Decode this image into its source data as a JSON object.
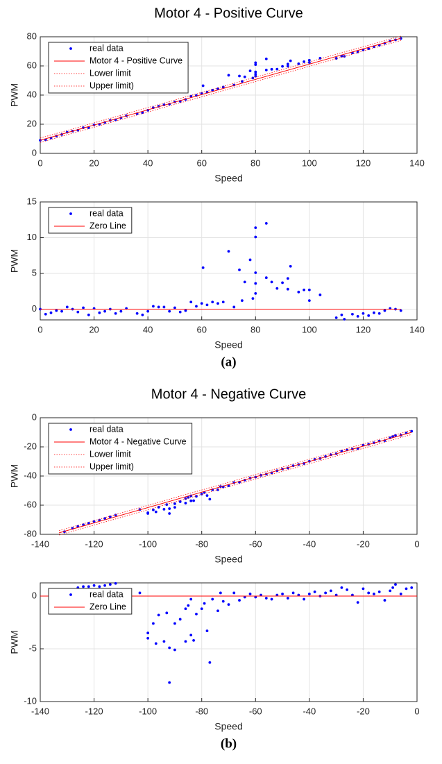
{
  "chart_data": [
    {
      "type": "scatter",
      "title": "Motor 4 - Positive Curve",
      "xlabel": "Speed",
      "ylabel": "PWM",
      "xlim": [
        0,
        140
      ],
      "ylim": [
        0,
        80
      ],
      "xticks": [
        0,
        20,
        40,
        60,
        80,
        100,
        120,
        140
      ],
      "yticks": [
        0,
        20,
        40,
        60,
        80
      ],
      "grid": true,
      "legend": "upper left",
      "series": [
        {
          "name": "real data",
          "color": "#0000ff",
          "style": "markers",
          "x": [
            0,
            2,
            4,
            6,
            8,
            10,
            12,
            14,
            16,
            18,
            20,
            22,
            24,
            26,
            28,
            30,
            32,
            36,
            38,
            40,
            42,
            44,
            46,
            48,
            50,
            52,
            54,
            56,
            58,
            60,
            60.5,
            62,
            64,
            66,
            68,
            70,
            72,
            74,
            75,
            76,
            78,
            79,
            80,
            80,
            80,
            80,
            80,
            84,
            84,
            86,
            88,
            90,
            92,
            93,
            92,
            96,
            98,
            100,
            100,
            104,
            110,
            112,
            113,
            116,
            118,
            120,
            122,
            124,
            126,
            128,
            130,
            132,
            134
          ],
          "values": [
            9,
            9.3,
            10.6,
            11.9,
            12.9,
            14.5,
            15.3,
            15.9,
            17.6,
            17.6,
            19.5,
            20,
            21.2,
            22.6,
            23,
            24.4,
            25.8,
            27.2,
            28,
            29.6,
            31.3,
            32.3,
            33.3,
            33.8,
            35.3,
            35.7,
            37,
            39.2,
            39.7,
            41.1,
            46.4,
            42,
            43.4,
            44.3,
            45.5,
            53.6,
            46.9,
            53.1,
            49.4,
            52.5,
            56.6,
            51.7,
            62.2,
            60.9,
            55.9,
            54.4,
            53,
            64.8,
            57.2,
            57.7,
            57.8,
            59.7,
            61.3,
            63.5,
            59.8,
            61.5,
            62.9,
            63.9,
            62.4,
            65.3,
            65.2,
            66.7,
            66.6,
            68.9,
            69.6,
            71,
            71.8,
            73.2,
            74.2,
            75.6,
            77,
            77.9,
            78.8
          ]
        },
        {
          "name": "Motor 4 - Positive Curve",
          "color": "#ff0000",
          "style": "solid",
          "x": [
            0,
            134
          ],
          "values": [
            9,
            79
          ]
        },
        {
          "name": "Lower limit",
          "color": "#ff0000",
          "style": "dotted",
          "x": [
            0,
            134
          ],
          "values": [
            7.5,
            77.5
          ]
        },
        {
          "name": "Upper limit)",
          "color": "#ff0000",
          "style": "dotted",
          "x": [
            0,
            134
          ],
          "values": [
            10.5,
            80.5
          ]
        }
      ]
    },
    {
      "type": "scatter",
      "xlabel": "Speed",
      "ylabel": "PWM",
      "caption": "(a)",
      "xlim": [
        0,
        140
      ],
      "ylim": [
        -1.5,
        15
      ],
      "xticks": [
        0,
        20,
        40,
        60,
        80,
        100,
        120,
        140
      ],
      "yticks": [
        0,
        5,
        10,
        15
      ],
      "grid": true,
      "legend": "upper left",
      "series": [
        {
          "name": "real data",
          "color": "#0000ff",
          "style": "markers",
          "x": [
            0,
            2,
            4,
            6,
            8,
            10,
            12,
            14,
            16,
            18,
            20,
            22,
            24,
            26,
            28,
            30,
            32,
            36,
            38,
            40,
            42,
            44,
            46,
            48,
            50,
            52,
            54,
            56,
            58,
            60,
            60.5,
            62,
            64,
            66,
            68,
            70,
            72,
            74,
            75,
            76,
            78,
            79,
            80,
            80,
            80,
            80,
            80,
            84,
            84,
            86,
            88,
            90,
            92,
            93,
            92,
            96,
            98,
            100,
            100,
            104,
            110,
            112,
            113,
            116,
            118,
            120,
            122,
            124,
            126,
            128,
            130,
            132,
            134
          ],
          "values": [
            0,
            -0.7,
            -0.5,
            -0.2,
            -0.3,
            0.3,
            0,
            -0.4,
            0.2,
            -0.8,
            0.1,
            -0.5,
            -0.3,
            0,
            -0.6,
            -0.3,
            0.1,
            -0.6,
            -0.8,
            -0.3,
            0.4,
            0.3,
            0.3,
            -0.3,
            0.2,
            -0.4,
            -0.2,
            1,
            0.4,
            0.8,
            5.8,
            0.6,
            1,
            0.8,
            1,
            8.1,
            0.3,
            5.5,
            1.2,
            3.8,
            6.9,
            1.5,
            11.4,
            10.1,
            5.1,
            3.6,
            2.2,
            12,
            4.4,
            3.8,
            2.9,
            3.7,
            4.3,
            6,
            2.8,
            2.4,
            2.7,
            2.7,
            1.2,
            2,
            -1.2,
            -0.8,
            -1.4,
            -0.7,
            -1,
            -0.6,
            -0.9,
            -0.5,
            -0.6,
            -0.2,
            0.1,
            0,
            -0.2
          ]
        },
        {
          "name": "Zero Line",
          "color": "#ff0000",
          "style": "solid",
          "x": [
            0,
            134
          ],
          "values": [
            0,
            0
          ]
        }
      ]
    },
    {
      "type": "scatter",
      "title": "Motor 4 - Negative Curve",
      "xlabel": "Speed",
      "ylabel": "PWM",
      "xlim": [
        -140,
        0
      ],
      "ylim": [
        -80,
        0
      ],
      "xticks": [
        -140,
        -120,
        -100,
        -80,
        -60,
        -40,
        -20,
        0
      ],
      "yticks": [
        -80,
        -60,
        -40,
        -20,
        0
      ],
      "grid": true,
      "legend": "upper left",
      "series": [
        {
          "name": "real data",
          "color": "#0000ff",
          "style": "markers",
          "x": [
            -131,
            -128,
            -126,
            -124,
            -122,
            -120,
            -118,
            -116,
            -114,
            -112,
            -103,
            -100,
            -100,
            -98,
            -97,
            -96,
            -94,
            -93,
            -92,
            -92,
            -90,
            -90,
            -88,
            -86,
            -86,
            -85,
            -84,
            -84,
            -83,
            -82,
            -80,
            -79,
            -78,
            -77,
            -76,
            -74,
            -73,
            -72,
            -70,
            -68,
            -66,
            -64,
            -62,
            -60,
            -58,
            -56,
            -54,
            -52,
            -50,
            -48,
            -46,
            -44,
            -42,
            -40,
            -38,
            -36,
            -34,
            -32,
            -30,
            -28,
            -26,
            -24,
            -22,
            -20,
            -18,
            -16,
            -14,
            -12,
            -10,
            -9,
            -8,
            -6,
            -4,
            -2
          ],
          "values": [
            -78.2,
            -75.9,
            -74.6,
            -73.4,
            -72.4,
            -71.2,
            -70.3,
            -69.1,
            -68,
            -66.8,
            -63,
            -65.7,
            -65.2,
            -63.2,
            -64.6,
            -61.4,
            -62.8,
            -59.6,
            -62.4,
            -65.7,
            -61.5,
            -59,
            -57.6,
            -55.5,
            -58.6,
            -54.7,
            -57,
            -53.6,
            -56.9,
            -53.9,
            -52.4,
            -51.3,
            -53.4,
            -55.9,
            -49.4,
            -49.4,
            -47.2,
            -47.4,
            -46.7,
            -44.5,
            -44.2,
            -42.8,
            -41.5,
            -40.7,
            -39.5,
            -38.7,
            -37.8,
            -36.3,
            -35.2,
            -34.5,
            -32.9,
            -32.1,
            -31.4,
            -29.9,
            -28.6,
            -28,
            -26.6,
            -25.4,
            -24.7,
            -23,
            -22.1,
            -21.5,
            -21.2,
            -18.8,
            -18.2,
            -17.2,
            -16,
            -15.7,
            -13.8,
            -12.9,
            -12.1,
            -12,
            -10.4,
            -9.3
          ]
        },
        {
          "name": "Motor 4 - Negative Curve",
          "color": "#ff0000",
          "style": "solid",
          "x": [
            -133,
            -2
          ],
          "values": [
            -79,
            -10
          ]
        },
        {
          "name": "Lower limit",
          "color": "#ff0000",
          "style": "dotted",
          "x": [
            -133,
            -2
          ],
          "values": [
            -80.5,
            -11.5
          ]
        },
        {
          "name": "Upper limit)",
          "color": "#ff0000",
          "style": "dotted",
          "x": [
            -133,
            -2
          ],
          "values": [
            -77.5,
            -8.5
          ]
        }
      ]
    },
    {
      "type": "scatter",
      "xlabel": "Speed",
      "ylabel": "PWM",
      "caption": "(b)",
      "xlim": [
        -140,
        0
      ],
      "ylim": [
        -10,
        1.25
      ],
      "xticks": [
        -140,
        -120,
        -100,
        -80,
        -60,
        -40,
        -20,
        0
      ],
      "yticks": [
        -10,
        -5,
        0
      ],
      "grid": true,
      "legend": "upper left",
      "series": [
        {
          "name": "real data",
          "color": "#0000ff",
          "style": "markers",
          "x": [
            -131,
            -128,
            -126,
            -124,
            -122,
            -120,
            -118,
            -116,
            -114,
            -112,
            -103,
            -100,
            -100,
            -98,
            -97,
            -96,
            -94,
            -93,
            -92,
            -92,
            -90,
            -90,
            -88,
            -86,
            -86,
            -85,
            -84,
            -84,
            -83,
            -82,
            -80,
            -79,
            -78,
            -77,
            -76,
            -74,
            -73,
            -72,
            -70,
            -68,
            -66,
            -64,
            -62,
            -60,
            -58,
            -56,
            -54,
            -52,
            -50,
            -48,
            -46,
            -44,
            -42,
            -40,
            -38,
            -36,
            -34,
            -32,
            -30,
            -28,
            -26,
            -24,
            -22,
            -20,
            -18,
            -16,
            -14,
            -12,
            -10,
            -9,
            -8,
            -6,
            -4,
            -2
          ],
          "values": [
            -0.2,
            0.6,
            0.8,
            0.9,
            0.9,
            1,
            0.9,
            1,
            1.1,
            1.2,
            0.3,
            -4,
            -3.5,
            -2.6,
            -4.5,
            -1.8,
            -4.3,
            -1.6,
            -4.9,
            -8.2,
            -5.1,
            -2.6,
            -2.2,
            -1.2,
            -4.3,
            -0.9,
            -3.7,
            -0.3,
            -4.2,
            -1.7,
            -1.2,
            -0.7,
            -3.3,
            -6.3,
            -0.3,
            -1.4,
            0.3,
            -0.5,
            -0.8,
            0.3,
            -0.4,
            -0.1,
            0.2,
            -0.1,
            0.1,
            -0.2,
            -0.3,
            0.1,
            0.2,
            -0.2,
            0.3,
            0.1,
            -0.3,
            0.2,
            0.4,
            0,
            0.3,
            0.5,
            0.1,
            0.8,
            0.6,
            0.1,
            -0.6,
            0.7,
            0.3,
            0.2,
            0.4,
            -0.4,
            0.5,
            0.8,
            1.1,
            0.2,
            0.7,
            0.8
          ]
        },
        {
          "name": "Zero Line",
          "color": "#ff0000",
          "style": "solid",
          "x": [
            -140,
            0
          ],
          "values": [
            0,
            0
          ]
        }
      ]
    }
  ]
}
